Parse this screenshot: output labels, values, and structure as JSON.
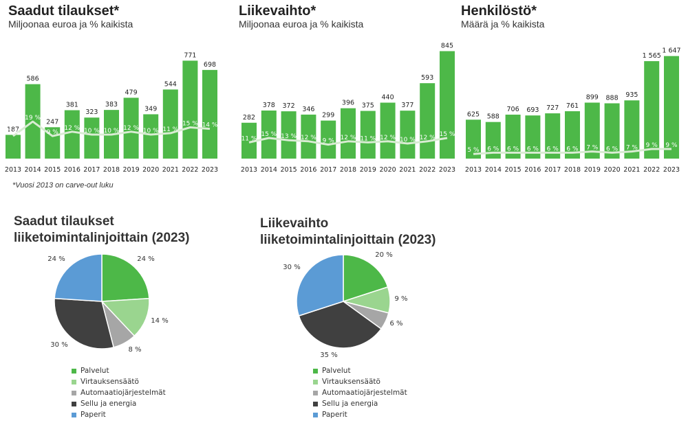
{
  "colors": {
    "bar": "#4db848",
    "pct_line": "#d9ecd3",
    "Palvelut": "#4db848",
    "Virtauksensäätö": "#9ad58f",
    "Automaatiojärjestelmät": "#a6a6a6",
    "Sellu ja energia": "#404040",
    "Paperit": "#5b9bd5"
  },
  "orders": {
    "title": "Saadut tilaukset*",
    "subtitle": "Miljoonaa euroa ja % kaikista",
    "note": "*Vuosi 2013 on carve-out luku"
  },
  "revenue": {
    "title": "Liikevaihto*",
    "subtitle": "Miljoonaa euroa ja % kaikista"
  },
  "staff": {
    "title": "Henkilöstö*",
    "subtitle": "Määrä ja % kaikista"
  },
  "pie_orders": {
    "title_line1": "Saadut tilaukset",
    "title_line2": "liiketoimintalinjoittain (2023)"
  },
  "pie_revenue": {
    "title_line1": "Liikevaihto",
    "title_line2": "liiketoimintalinjoittain (2023)"
  },
  "chart_data": [
    {
      "type": "bar",
      "title": "Saadut tilaukset*",
      "subtitle": "Miljoonaa euroa ja % kaikista",
      "categories": [
        "2013",
        "2014",
        "2015",
        "2016",
        "2017",
        "2018",
        "2019",
        "2020",
        "2021",
        "2022",
        "2023"
      ],
      "values": [
        187,
        586,
        247,
        381,
        323,
        383,
        479,
        349,
        544,
        771,
        698
      ],
      "value_labels": [
        "187",
        "586",
        "247",
        "381",
        "323",
        "383",
        "479",
        "349",
        "544",
        "771",
        "698"
      ],
      "pct_values": [
        9,
        19,
        9,
        12,
        10,
        10,
        12,
        10,
        11,
        15,
        14
      ],
      "pct_labels": [
        "9 %",
        "19 %",
        "9 %",
        "12 %",
        "10 %",
        "10 %",
        "12 %",
        "10 %",
        "11 %",
        "15 %",
        "14 %"
      ],
      "ylim": [
        0,
        800
      ]
    },
    {
      "type": "bar",
      "title": "Liikevaihto*",
      "subtitle": "Miljoonaa euroa ja % kaikista",
      "categories": [
        "2013",
        "2014",
        "2015",
        "2016",
        "2017",
        "2018",
        "2019",
        "2020",
        "2021",
        "2022",
        "2023"
      ],
      "values": [
        282,
        378,
        372,
        346,
        299,
        396,
        375,
        440,
        377,
        593,
        845
      ],
      "value_labels": [
        "282",
        "378",
        "372",
        "346",
        "299",
        "396",
        "375",
        "440",
        "377",
        "593",
        "845"
      ],
      "pct_values": [
        11,
        15,
        13,
        12,
        9,
        12,
        11,
        12,
        10,
        12,
        15
      ],
      "pct_labels": [
        "11 %",
        "15 %",
        "13 %",
        "12 %",
        "9 %",
        "12 %",
        "11 %",
        "12 %",
        "10 %",
        "12 %",
        "15 %"
      ],
      "ylim": [
        0,
        880
      ]
    },
    {
      "type": "bar",
      "title": "Henkilöstö*",
      "subtitle": "Määrä ja % kaikista",
      "categories": [
        "2013",
        "2014",
        "2015",
        "2016",
        "2017",
        "2018",
        "2019",
        "2020",
        "2021",
        "2022",
        "2023"
      ],
      "values": [
        625,
        588,
        706,
        693,
        727,
        761,
        899,
        888,
        935,
        1565,
        1647
      ],
      "value_labels": [
        "625",
        "588",
        "706",
        "693",
        "727",
        "761",
        "899",
        "888",
        "935",
        "1 565",
        "1 647"
      ],
      "pct_values": [
        5,
        6,
        6,
        6,
        6,
        6,
        7,
        6,
        7,
        9,
        9
      ],
      "pct_labels": [
        "5 %",
        "6 %",
        "6 %",
        "6 %",
        "6 %",
        "6 %",
        "7 %",
        "6 %",
        "7 %",
        "9 %",
        "9 %"
      ],
      "ylim": [
        0,
        1720
      ]
    },
    {
      "type": "pie",
      "title": "Saadut tilaukset liiketoimintalinjoittain (2023)",
      "labels": [
        "Palvelut",
        "Virtauksensäätö",
        "Automaatiojärjestelmät",
        "Sellu ja energia",
        "Paperit"
      ],
      "values": [
        24,
        14,
        8,
        30,
        24
      ],
      "value_labels": [
        "24 %",
        "14 %",
        "8 %",
        "30 %",
        "24 %"
      ]
    },
    {
      "type": "pie",
      "title": "Liikevaihto liiketoimintalinjoittain (2023)",
      "labels": [
        "Palvelut",
        "Virtauksensäätö",
        "Automaatiojärjestelmät",
        "Sellu ja energia",
        "Paperit"
      ],
      "values": [
        20,
        9,
        6,
        35,
        30
      ],
      "value_labels": [
        "20 %",
        "9 %",
        "6 %",
        "35 %",
        "30 %"
      ]
    }
  ]
}
